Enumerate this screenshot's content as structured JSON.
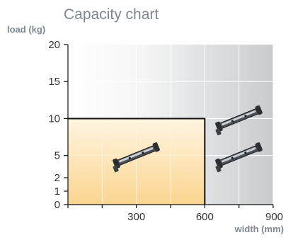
{
  "chart_data": {
    "type": "area",
    "title": "Capacity chart",
    "ylabel": "load (kg)",
    "xlabel": "width (mm)",
    "xlim": [
      0,
      900
    ],
    "ylim": [
      0,
      20
    ],
    "x_ticks": [
      0,
      150,
      300,
      450,
      600,
      750,
      900
    ],
    "x_tick_labels": [
      "300",
      "600",
      "900"
    ],
    "x_labeled_ticks": [
      300,
      600,
      900
    ],
    "y_ticks": [
      0,
      1,
      2,
      5,
      10,
      15,
      20
    ],
    "y_tick_labels": [
      "0",
      "1",
      "2",
      "5",
      "10",
      "15",
      "20"
    ],
    "y_break_scale": true,
    "grid": true,
    "regions": [
      {
        "x": [
          0,
          600
        ],
        "y": [
          0,
          10
        ],
        "color": "#fbd58f"
      }
    ],
    "icons": [
      {
        "name": "slide-rail-icon",
        "x": 300,
        "y": 5
      },
      {
        "name": "slide-rail-icon",
        "x": 750,
        "y": 10
      },
      {
        "name": "slide-rail-icon",
        "x": 750,
        "y": 5
      }
    ],
    "colors": {
      "background_left": "#ffffff",
      "background_right": "#c9cbce",
      "region": "#fbd58f",
      "region_edge": "#fff5e1",
      "text_muted": "#7e8790",
      "axis": "#111111"
    }
  }
}
